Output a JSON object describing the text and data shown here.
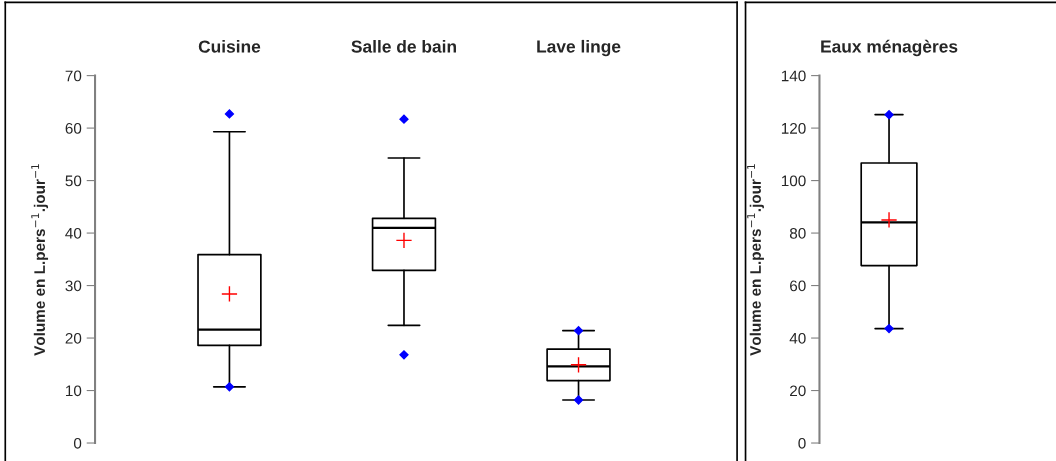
{
  "chart_data": [
    {
      "type": "box",
      "categories": [
        "Cuisine",
        "Salle de bain",
        "Lave linge"
      ],
      "ylabel": "Volume en L.pers$^{−1}$.jour$^{−1}$",
      "ylim": [
        0,
        70
      ],
      "yticks": [
        0,
        10,
        20,
        30,
        40,
        50,
        60,
        70
      ],
      "grid": false,
      "legend": false,
      "boxes": [
        {
          "low": 10.7,
          "q1": 18.6,
          "median": 21.6,
          "q3": 35.9,
          "high": 59.3,
          "mean": 28.4,
          "outliers": [
            62.7,
            10.7
          ]
        },
        {
          "low": 22.4,
          "q1": 32.9,
          "median": 41.0,
          "q3": 42.8,
          "high": 54.3,
          "mean": 38.6,
          "outliers": [
            61.7,
            16.8
          ]
        },
        {
          "low": 8.2,
          "q1": 11.9,
          "median": 14.6,
          "q3": 17.9,
          "high": 21.4,
          "mean": 14.9,
          "outliers": [
            21.4,
            8.2
          ]
        }
      ]
    },
    {
      "type": "box",
      "categories": [
        "Eaux ménagères"
      ],
      "ylabel": "Volume en L.pers$^{−1}$.jour$^{−1}$",
      "ylim": [
        0,
        140
      ],
      "yticks": [
        0,
        20,
        40,
        60,
        80,
        100,
        120,
        140
      ],
      "grid": false,
      "legend": false,
      "boxes": [
        {
          "low": 43.6,
          "q1": 67.6,
          "median": 84.1,
          "q3": 106.7,
          "high": 125.1,
          "mean": 85.0,
          "outliers": [
            125.1,
            43.6
          ]
        }
      ]
    }
  ]
}
